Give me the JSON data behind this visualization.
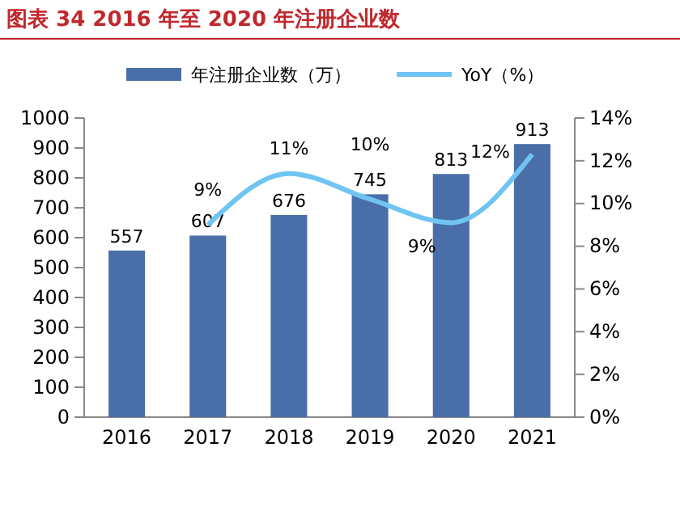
{
  "chart_data": {
    "type": "bar",
    "title": "图表 34 2016 年至 2020 年注册企业数",
    "categories": [
      "2016",
      "2017",
      "2018",
      "2019",
      "2020",
      "2021"
    ],
    "series": [
      {
        "name": "年注册企业数（万）",
        "color": "#4a6ea8",
        "values": [
          557,
          607,
          676,
          745,
          813,
          913
        ],
        "value_labels": [
          "557",
          "607",
          "676",
          "745",
          "813",
          "913"
        ]
      },
      {
        "name": "YoY（%）",
        "type": "line",
        "axis": "y2",
        "color": "#70c4f2",
        "values": [
          null,
          9,
          11.4,
          10.2,
          9.1,
          12.3
        ],
        "value_labels": [
          null,
          "9%",
          "11%",
          "10%",
          "9%",
          "12%"
        ]
      }
    ],
    "ylim": [
      0,
      1000
    ],
    "yticks": [
      0,
      100,
      200,
      300,
      400,
      500,
      600,
      700,
      800,
      900,
      1000
    ],
    "y2lim": [
      0,
      14
    ],
    "y2ticks": [
      {
        "value": 0,
        "label": "0%"
      },
      {
        "value": 2,
        "label": "2%"
      },
      {
        "value": 4,
        "label": "4%"
      },
      {
        "value": 6,
        "label": "6%"
      },
      {
        "value": 8,
        "label": "8%"
      },
      {
        "value": 10,
        "label": "10%"
      },
      {
        "value": 12,
        "label": "12%"
      },
      {
        "value": 14,
        "label": "14%"
      }
    ],
    "legend": "top",
    "grid": false
  }
}
